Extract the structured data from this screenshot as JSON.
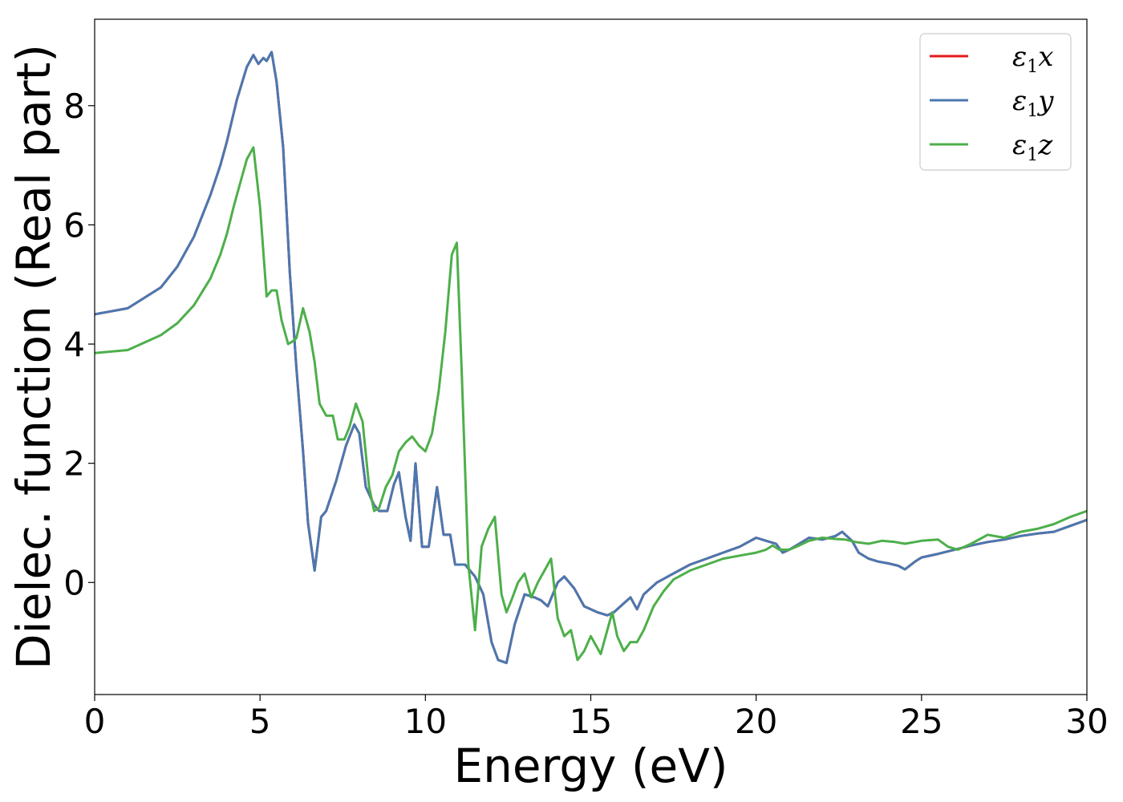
{
  "chart_data": {
    "type": "line",
    "title": "",
    "xlabel": "Energy (eV)",
    "ylabel": "Dielec. function (Real part)",
    "xlim": [
      0,
      30
    ],
    "ylim": [
      -1.88,
      9.45
    ],
    "xticks": [
      0,
      5,
      10,
      15,
      20,
      25,
      30
    ],
    "yticks": [
      0,
      2,
      4,
      6,
      8
    ],
    "grid": false,
    "legend_position": "top-right",
    "series": [
      {
        "name": "ε1x",
        "legend_base": "ε",
        "legend_sub": "1",
        "legend_var": "x",
        "color": "#e41a1c",
        "x": [
          0,
          1,
          2,
          2.5,
          3,
          3.5,
          3.8,
          4.0,
          4.3,
          4.6,
          4.8,
          4.95,
          5.1,
          5.2,
          5.35,
          5.5,
          5.7,
          5.9,
          6.1,
          6.3,
          6.45,
          6.65,
          6.85,
          7.0,
          7.3,
          7.6,
          7.85,
          8.0,
          8.2,
          8.45,
          8.6,
          8.85,
          9.05,
          9.2,
          9.4,
          9.55,
          9.7,
          9.9,
          10.1,
          10.35,
          10.55,
          10.75,
          10.9,
          11.2,
          11.5,
          11.75,
          12.0,
          12.2,
          12.45,
          12.7,
          13.0,
          13.3,
          13.5,
          13.7,
          14.0,
          14.2,
          14.5,
          14.8,
          15.2,
          15.5,
          15.7,
          16.0,
          16.2,
          16.4,
          16.6,
          17.0,
          17.5,
          18.0,
          18.5,
          19.0,
          19.5,
          20.0,
          20.3,
          20.6,
          20.8,
          21.0,
          21.3,
          21.6,
          22.0,
          22.4,
          22.6,
          22.9,
          23.1,
          23.4,
          23.7,
          24.0,
          24.3,
          24.5,
          24.8,
          25.0,
          25.5,
          26.0,
          26.5,
          27.0,
          27.5,
          28.0,
          28.5,
          29.0,
          29.5,
          30.0
        ],
        "y": [
          4.5,
          4.6,
          4.95,
          5.3,
          5.8,
          6.5,
          7.0,
          7.4,
          8.1,
          8.65,
          8.85,
          8.7,
          8.8,
          8.75,
          8.9,
          8.4,
          7.3,
          5.2,
          3.6,
          2.2,
          1.0,
          0.2,
          1.1,
          1.2,
          1.7,
          2.3,
          2.65,
          2.5,
          1.6,
          1.3,
          1.2,
          1.2,
          1.65,
          1.85,
          1.1,
          0.7,
          2.0,
          0.6,
          0.6,
          1.6,
          0.8,
          0.8,
          0.3,
          0.3,
          0.1,
          -0.2,
          -1.0,
          -1.3,
          -1.35,
          -0.7,
          -0.2,
          -0.25,
          -0.3,
          -0.4,
          0.0,
          0.1,
          -0.1,
          -0.4,
          -0.5,
          -0.55,
          -0.5,
          -0.35,
          -0.25,
          -0.45,
          -0.2,
          0.0,
          0.15,
          0.3,
          0.4,
          0.5,
          0.6,
          0.75,
          0.7,
          0.65,
          0.5,
          0.55,
          0.65,
          0.75,
          0.72,
          0.78,
          0.85,
          0.7,
          0.5,
          0.4,
          0.35,
          0.32,
          0.28,
          0.22,
          0.35,
          0.42,
          0.48,
          0.55,
          0.62,
          0.68,
          0.72,
          0.78,
          0.82,
          0.85,
          0.95,
          1.05
        ]
      },
      {
        "name": "ε1y",
        "legend_base": "ε",
        "legend_sub": "1",
        "legend_var": "y",
        "color": "#4a78b0",
        "x": [
          0,
          1,
          2,
          2.5,
          3,
          3.5,
          3.8,
          4.0,
          4.3,
          4.6,
          4.8,
          4.95,
          5.1,
          5.2,
          5.35,
          5.5,
          5.7,
          5.9,
          6.1,
          6.3,
          6.45,
          6.65,
          6.85,
          7.0,
          7.3,
          7.6,
          7.85,
          8.0,
          8.2,
          8.45,
          8.6,
          8.85,
          9.05,
          9.2,
          9.4,
          9.55,
          9.7,
          9.9,
          10.1,
          10.35,
          10.55,
          10.75,
          10.9,
          11.2,
          11.5,
          11.75,
          12.0,
          12.2,
          12.45,
          12.7,
          13.0,
          13.3,
          13.5,
          13.7,
          14.0,
          14.2,
          14.5,
          14.8,
          15.2,
          15.5,
          15.7,
          16.0,
          16.2,
          16.4,
          16.6,
          17.0,
          17.5,
          18.0,
          18.5,
          19.0,
          19.5,
          20.0,
          20.3,
          20.6,
          20.8,
          21.0,
          21.3,
          21.6,
          22.0,
          22.4,
          22.6,
          22.9,
          23.1,
          23.4,
          23.7,
          24.0,
          24.3,
          24.5,
          24.8,
          25.0,
          25.5,
          26.0,
          26.5,
          27.0,
          27.5,
          28.0,
          28.5,
          29.0,
          29.5,
          30.0
        ],
        "y": [
          4.5,
          4.6,
          4.95,
          5.3,
          5.8,
          6.5,
          7.0,
          7.4,
          8.1,
          8.65,
          8.85,
          8.7,
          8.8,
          8.75,
          8.9,
          8.4,
          7.3,
          5.2,
          3.6,
          2.2,
          1.0,
          0.2,
          1.1,
          1.2,
          1.7,
          2.3,
          2.65,
          2.5,
          1.6,
          1.3,
          1.2,
          1.2,
          1.65,
          1.85,
          1.1,
          0.7,
          2.0,
          0.6,
          0.6,
          1.6,
          0.8,
          0.8,
          0.3,
          0.3,
          0.1,
          -0.2,
          -1.0,
          -1.3,
          -1.35,
          -0.7,
          -0.2,
          -0.25,
          -0.3,
          -0.4,
          0.0,
          0.1,
          -0.1,
          -0.4,
          -0.5,
          -0.55,
          -0.5,
          -0.35,
          -0.25,
          -0.45,
          -0.2,
          0.0,
          0.15,
          0.3,
          0.4,
          0.5,
          0.6,
          0.75,
          0.7,
          0.65,
          0.5,
          0.55,
          0.65,
          0.75,
          0.72,
          0.78,
          0.85,
          0.7,
          0.5,
          0.4,
          0.35,
          0.32,
          0.28,
          0.22,
          0.35,
          0.42,
          0.48,
          0.55,
          0.62,
          0.68,
          0.72,
          0.78,
          0.82,
          0.85,
          0.95,
          1.05
        ]
      },
      {
        "name": "ε1z",
        "legend_base": "ε",
        "legend_sub": "1",
        "legend_var": "z",
        "color": "#4daf4a",
        "x": [
          0,
          1,
          2,
          2.5,
          3,
          3.5,
          3.8,
          4.0,
          4.2,
          4.4,
          4.6,
          4.8,
          5.0,
          5.2,
          5.35,
          5.5,
          5.65,
          5.85,
          6.0,
          6.1,
          6.3,
          6.5,
          6.65,
          6.8,
          7.0,
          7.2,
          7.35,
          7.55,
          7.7,
          7.9,
          8.1,
          8.3,
          8.45,
          8.6,
          8.8,
          9.0,
          9.2,
          9.4,
          9.6,
          9.8,
          10.0,
          10.2,
          10.4,
          10.6,
          10.8,
          10.95,
          11.1,
          11.3,
          11.5,
          11.7,
          11.9,
          12.1,
          12.3,
          12.45,
          12.6,
          12.8,
          13.0,
          13.2,
          13.4,
          13.6,
          13.8,
          14.0,
          14.2,
          14.4,
          14.6,
          14.8,
          15.0,
          15.3,
          15.5,
          15.65,
          15.8,
          16.0,
          16.2,
          16.4,
          16.6,
          16.9,
          17.2,
          17.5,
          18.0,
          18.5,
          19.0,
          19.5,
          20.0,
          20.3,
          20.5,
          20.7,
          21.0,
          21.3,
          21.6,
          22.0,
          22.4,
          22.7,
          23.0,
          23.4,
          23.8,
          24.2,
          24.5,
          24.8,
          25.0,
          25.5,
          25.8,
          26.1,
          26.5,
          27.0,
          27.5,
          28.0,
          28.5,
          29.0,
          29.5,
          30.0
        ],
        "y": [
          3.85,
          3.9,
          4.15,
          4.35,
          4.65,
          5.1,
          5.5,
          5.85,
          6.3,
          6.7,
          7.1,
          7.3,
          6.3,
          4.8,
          4.9,
          4.9,
          4.4,
          4.0,
          4.05,
          4.1,
          4.6,
          4.2,
          3.7,
          3.0,
          2.8,
          2.8,
          2.4,
          2.4,
          2.6,
          3.0,
          2.7,
          1.6,
          1.2,
          1.25,
          1.6,
          1.8,
          2.2,
          2.35,
          2.45,
          2.3,
          2.2,
          2.5,
          3.2,
          4.2,
          5.5,
          5.7,
          3.5,
          0.3,
          -0.8,
          0.6,
          0.9,
          1.1,
          -0.2,
          -0.5,
          -0.3,
          0.0,
          0.15,
          -0.25,
          0.0,
          0.2,
          0.4,
          -0.6,
          -0.9,
          -0.8,
          -1.3,
          -1.15,
          -0.9,
          -1.2,
          -0.8,
          -0.5,
          -0.9,
          -1.15,
          -1.0,
          -1.0,
          -0.8,
          -0.4,
          -0.15,
          0.05,
          0.2,
          0.3,
          0.4,
          0.45,
          0.5,
          0.55,
          0.62,
          0.55,
          0.55,
          0.62,
          0.7,
          0.75,
          0.73,
          0.72,
          0.68,
          0.65,
          0.7,
          0.68,
          0.65,
          0.68,
          0.7,
          0.72,
          0.6,
          0.55,
          0.65,
          0.8,
          0.75,
          0.85,
          0.9,
          0.98,
          1.1,
          1.2
        ]
      }
    ]
  }
}
